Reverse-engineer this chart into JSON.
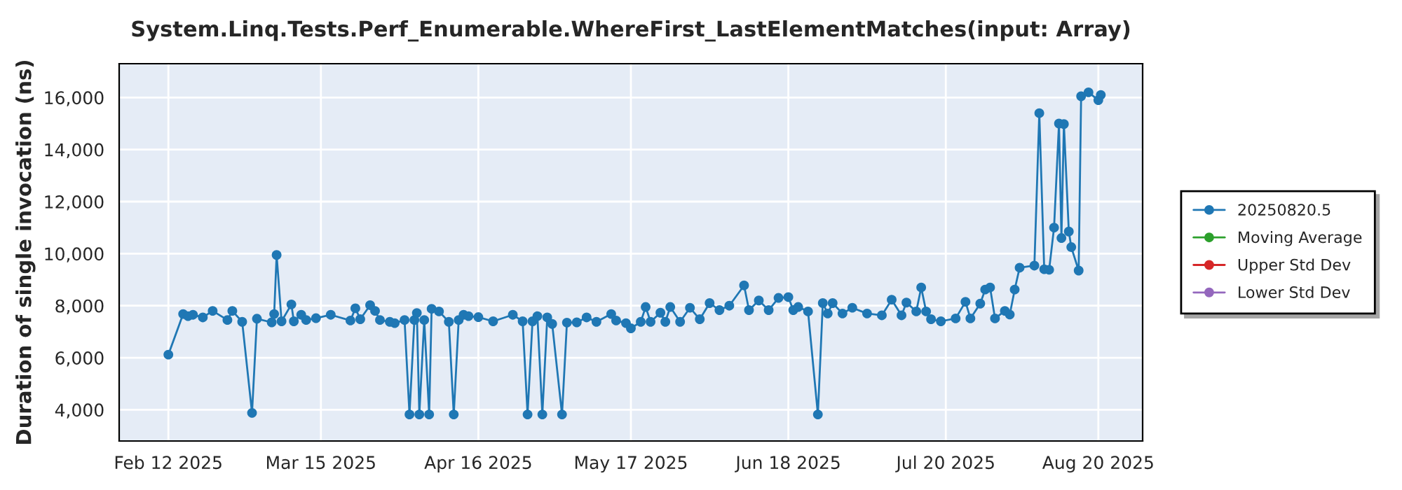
{
  "chart_data": {
    "type": "line",
    "title": "System.Linq.Tests.Perf_Enumerable.WhereFirst_LastElementMatches(input: Array)",
    "ylabel": "Duration of single invocation (ns)",
    "x": [
      "2025-02-12",
      "2025-02-15",
      "2025-02-16",
      "2025-02-17",
      "2025-02-19",
      "2025-02-21",
      "2025-02-24",
      "2025-02-25",
      "2025-02-27",
      "2025-03-01",
      "2025-03-02",
      "2025-03-05",
      "2025-03-05T12:00",
      "2025-03-06",
      "2025-03-07",
      "2025-03-09",
      "2025-03-09T12:00",
      "2025-03-11",
      "2025-03-12",
      "2025-03-14",
      "2025-03-17",
      "2025-03-21",
      "2025-03-22",
      "2025-03-23",
      "2025-03-25",
      "2025-03-26",
      "2025-03-27",
      "2025-03-29",
      "2025-03-30",
      "2025-04-01",
      "2025-04-02",
      "2025-04-03",
      "2025-04-03T12:00",
      "2025-04-04",
      "2025-04-05",
      "2025-04-06",
      "2025-04-06T12:00",
      "2025-04-08",
      "2025-04-10",
      "2025-04-11",
      "2025-04-12",
      "2025-04-13",
      "2025-04-14",
      "2025-04-16",
      "2025-04-19",
      "2025-04-23",
      "2025-04-25",
      "2025-04-26",
      "2025-04-27",
      "2025-04-28",
      "2025-04-29",
      "2025-04-30",
      "2025-05-01",
      "2025-05-03",
      "2025-05-04",
      "2025-05-06",
      "2025-05-08",
      "2025-05-10",
      "2025-05-13",
      "2025-05-14",
      "2025-05-16",
      "2025-05-17",
      "2025-05-19",
      "2025-05-20",
      "2025-05-21",
      "2025-05-23",
      "2025-05-24",
      "2025-05-25",
      "2025-05-27",
      "2025-05-29",
      "2025-05-31",
      "2025-06-02",
      "2025-06-04",
      "2025-06-06",
      "2025-06-09",
      "2025-06-10",
      "2025-06-12",
      "2025-06-14",
      "2025-06-16",
      "2025-06-18",
      "2025-06-19",
      "2025-06-20",
      "2025-06-22",
      "2025-06-24",
      "2025-06-25",
      "2025-06-26",
      "2025-06-27",
      "2025-06-29",
      "2025-07-01",
      "2025-07-04",
      "2025-07-07",
      "2025-07-09",
      "2025-07-11",
      "2025-07-12",
      "2025-07-14",
      "2025-07-15",
      "2025-07-16",
      "2025-07-17",
      "2025-07-19",
      "2025-07-22",
      "2025-07-24",
      "2025-07-25",
      "2025-07-27",
      "2025-07-28",
      "2025-07-29",
      "2025-07-30",
      "2025-08-01",
      "2025-08-02",
      "2025-08-03",
      "2025-08-04",
      "2025-08-07",
      "2025-08-08",
      "2025-08-09",
      "2025-08-10",
      "2025-08-11",
      "2025-08-12",
      "2025-08-12T12:00",
      "2025-08-13",
      "2025-08-14",
      "2025-08-14T12:00",
      "2025-08-16",
      "2025-08-16T12:00",
      "2025-08-18",
      "2025-08-20",
      "2025-08-20T12:00"
    ],
    "series": [
      {
        "name": "20250820.5",
        "color": "#1f77b4",
        "values": [
          6120,
          7680,
          7600,
          7650,
          7550,
          7800,
          7450,
          7800,
          7380,
          3880,
          7500,
          7360,
          7680,
          9950,
          7400,
          8050,
          7400,
          7650,
          7450,
          7520,
          7650,
          7430,
          7900,
          7480,
          8020,
          7800,
          7450,
          7380,
          7330,
          7450,
          3820,
          7450,
          7720,
          3820,
          7450,
          3820,
          7880,
          7780,
          7380,
          3820,
          7450,
          7650,
          7600,
          7560,
          7400,
          7650,
          7400,
          3820,
          7400,
          7600,
          3820,
          7550,
          7300,
          3820,
          7350,
          7360,
          7550,
          7380,
          7680,
          7430,
          7330,
          7130,
          7380,
          7950,
          7380,
          7730,
          7380,
          7950,
          7380,
          7920,
          7480,
          8100,
          7830,
          8000,
          8780,
          7830,
          8200,
          7830,
          8300,
          8330,
          7830,
          7950,
          7780,
          3820,
          8100,
          7700,
          8100,
          7700,
          7920,
          7700,
          7630,
          8230,
          7630,
          8120,
          7780,
          8700,
          7780,
          7480,
          7400,
          7510,
          8150,
          7510,
          8080,
          8620,
          8700,
          7510,
          7800,
          7660,
          8620,
          9460,
          9540,
          15400,
          9400,
          9380,
          11000,
          15000,
          10600,
          14980,
          10850,
          10250,
          9350,
          16050,
          16200,
          15900,
          16100
        ]
      },
      {
        "name": "Moving Average",
        "color": "#2ca02c",
        "values": [
          null,
          null,
          null,
          null,
          null,
          null,
          null,
          null,
          null,
          null,
          null,
          null,
          null,
          null,
          null,
          null,
          null,
          null,
          null,
          null,
          null,
          null,
          null,
          null,
          null,
          null,
          null,
          null,
          null,
          null,
          null,
          null,
          null,
          null,
          null,
          null,
          null,
          null,
          null,
          null,
          null,
          null,
          null,
          null,
          null,
          null,
          null,
          null,
          null,
          null,
          null,
          null,
          null,
          null,
          null,
          null,
          null,
          null,
          null,
          null,
          null,
          null,
          null,
          null,
          null,
          null,
          null,
          null,
          null,
          null,
          null,
          null,
          null,
          null,
          null,
          null,
          null,
          null,
          null,
          null,
          null,
          null,
          null,
          null,
          null,
          null,
          null,
          null,
          null,
          null,
          null,
          null,
          null,
          null,
          null,
          null,
          null,
          null,
          null,
          null,
          null,
          null,
          null,
          null,
          null,
          null,
          null,
          null,
          null,
          null,
          null,
          null,
          null,
          null,
          null,
          null,
          null,
          null,
          null,
          null,
          null,
          null,
          null,
          null,
          null
        ]
      },
      {
        "name": "Upper Std Dev",
        "color": "#d62728",
        "values": [
          null,
          null,
          null,
          null,
          null,
          null,
          null,
          null,
          null,
          null,
          null,
          null,
          null,
          null,
          null,
          null,
          null,
          null,
          null,
          null,
          null,
          null,
          null,
          null,
          null,
          null,
          null,
          null,
          null,
          null,
          null,
          null,
          null,
          null,
          null,
          null,
          null,
          null,
          null,
          null,
          null,
          null,
          null,
          null,
          null,
          null,
          null,
          null,
          null,
          null,
          null,
          null,
          null,
          null,
          null,
          null,
          null,
          null,
          null,
          null,
          null,
          null,
          null,
          null,
          null,
          null,
          null,
          null,
          null,
          null,
          null,
          null,
          null,
          null,
          null,
          null,
          null,
          null,
          null,
          null,
          null,
          null,
          null,
          null,
          null,
          null,
          null,
          null,
          null,
          null,
          null,
          null,
          null,
          null,
          null,
          null,
          null,
          null,
          null,
          null,
          null,
          null,
          null,
          null,
          null,
          null,
          null,
          null,
          null,
          null,
          null,
          null,
          null,
          null,
          null,
          null,
          null,
          null,
          null,
          null,
          null,
          null,
          null,
          null,
          null
        ]
      },
      {
        "name": "Lower Std Dev",
        "color": "#9467bd",
        "values": [
          null,
          null,
          null,
          null,
          null,
          null,
          null,
          null,
          null,
          null,
          null,
          null,
          null,
          null,
          null,
          null,
          null,
          null,
          null,
          null,
          null,
          null,
          null,
          null,
          null,
          null,
          null,
          null,
          null,
          null,
          null,
          null,
          null,
          null,
          null,
          null,
          null,
          null,
          null,
          null,
          null,
          null,
          null,
          null,
          null,
          null,
          null,
          null,
          null,
          null,
          null,
          null,
          null,
          null,
          null,
          null,
          null,
          null,
          null,
          null,
          null,
          null,
          null,
          null,
          null,
          null,
          null,
          null,
          null,
          null,
          null,
          null,
          null,
          null,
          null,
          null,
          null,
          null,
          null,
          null,
          null,
          null,
          null,
          null,
          null,
          null,
          null,
          null,
          null,
          null,
          null,
          null,
          null,
          null,
          null,
          null,
          null,
          null,
          null,
          null,
          null,
          null,
          null,
          null,
          null,
          null,
          null,
          null,
          null,
          null,
          null,
          null,
          null,
          null,
          null,
          null,
          null,
          null,
          null,
          null,
          null,
          null,
          null,
          null,
          null
        ]
      }
    ],
    "xlim": [
      "2025-02-02",
      "2025-08-29"
    ],
    "xticks": [
      {
        "value": "2025-02-12",
        "label": "Feb 12 2025"
      },
      {
        "value": "2025-03-15",
        "label": "Mar 15 2025"
      },
      {
        "value": "2025-04-16",
        "label": "Apr 16 2025"
      },
      {
        "value": "2025-05-17",
        "label": "May 17 2025"
      },
      {
        "value": "2025-06-18",
        "label": "Jun 18 2025"
      },
      {
        "value": "2025-07-20",
        "label": "Jul 20 2025"
      },
      {
        "value": "2025-08-20",
        "label": "Aug 20 2025"
      }
    ],
    "ylim": [
      2800,
      17300
    ],
    "yticks": [
      {
        "value": 4000,
        "label": "4,000"
      },
      {
        "value": 6000,
        "label": "6,000"
      },
      {
        "value": 8000,
        "label": "8,000"
      },
      {
        "value": 10000,
        "label": "10,000"
      },
      {
        "value": 12000,
        "label": "12,000"
      },
      {
        "value": 14000,
        "label": "14,000"
      },
      {
        "value": 16000,
        "label": "16,000"
      }
    ],
    "grid": true,
    "legend": "right",
    "marker": "circle",
    "line_style": "solid"
  }
}
